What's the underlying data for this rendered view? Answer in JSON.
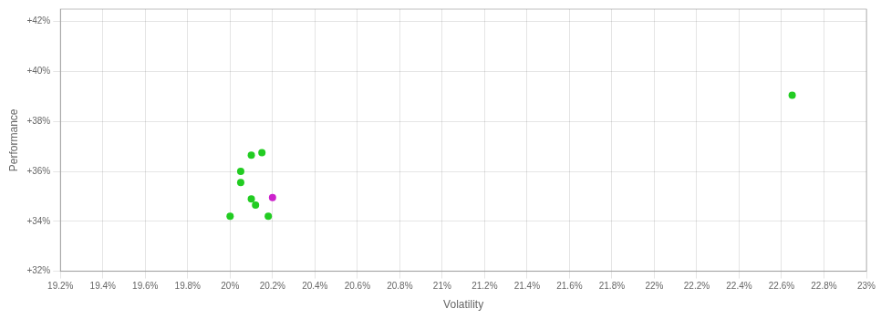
{
  "chart_data": {
    "type": "scatter",
    "xlabel": "Volatility",
    "ylabel": "Performance",
    "xlim": [
      0.192,
      0.23
    ],
    "ylim": [
      0.32,
      0.425
    ],
    "xticks": [
      {
        "value": 0.192,
        "label": "19.2%"
      },
      {
        "value": 0.194,
        "label": "19.4%"
      },
      {
        "value": 0.196,
        "label": "19.6%"
      },
      {
        "value": 0.198,
        "label": "19.8%"
      },
      {
        "value": 0.2,
        "label": "20%"
      },
      {
        "value": 0.202,
        "label": "20.2%"
      },
      {
        "value": 0.204,
        "label": "20.4%"
      },
      {
        "value": 0.206,
        "label": "20.6%"
      },
      {
        "value": 0.208,
        "label": "20.8%"
      },
      {
        "value": 0.21,
        "label": "21%"
      },
      {
        "value": 0.212,
        "label": "21.2%"
      },
      {
        "value": 0.214,
        "label": "21.4%"
      },
      {
        "value": 0.216,
        "label": "21.6%"
      },
      {
        "value": 0.218,
        "label": "21.8%"
      },
      {
        "value": 0.22,
        "label": "22%"
      },
      {
        "value": 0.222,
        "label": "22.2%"
      },
      {
        "value": 0.224,
        "label": "22.4%"
      },
      {
        "value": 0.226,
        "label": "22.6%"
      },
      {
        "value": 0.228,
        "label": "22.8%"
      },
      {
        "value": 0.23,
        "label": "23%"
      }
    ],
    "yticks": [
      {
        "value": 0.32,
        "label": "+32%"
      },
      {
        "value": 0.34,
        "label": "+34%"
      },
      {
        "value": 0.36,
        "label": "+36%"
      },
      {
        "value": 0.38,
        "label": "+38%"
      },
      {
        "value": 0.4,
        "label": "+40%"
      },
      {
        "value": 0.42,
        "label": "+42%"
      }
    ],
    "grid": true,
    "series": [
      {
        "color": "#22cc22",
        "x": [
          0.2,
          0.201,
          0.2015,
          0.2005,
          0.2005,
          0.201,
          0.2012,
          0.2018,
          0.2265
        ],
        "values": [
          0.342,
          0.3665,
          0.3675,
          0.36,
          0.3555,
          0.349,
          0.3465,
          0.342,
          0.3905
        ]
      },
      {
        "color": "#cc22cc",
        "x": [
          0.202
        ],
        "values": [
          0.3495
        ]
      }
    ]
  }
}
